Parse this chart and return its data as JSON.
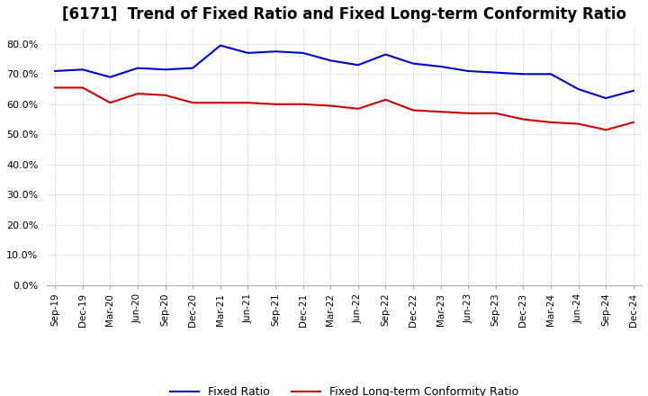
{
  "title": "[6171]  Trend of Fixed Ratio and Fixed Long-term Conformity Ratio",
  "x_labels": [
    "Sep-19",
    "Dec-19",
    "Mar-20",
    "Jun-20",
    "Sep-20",
    "Dec-20",
    "Mar-21",
    "Jun-21",
    "Sep-21",
    "Dec-21",
    "Mar-22",
    "Jun-22",
    "Sep-22",
    "Dec-22",
    "Mar-23",
    "Jun-23",
    "Sep-23",
    "Dec-23",
    "Mar-24",
    "Jun-24",
    "Sep-24",
    "Dec-24"
  ],
  "fixed_ratio": [
    71.0,
    71.5,
    69.0,
    72.0,
    71.5,
    72.0,
    79.5,
    77.0,
    77.5,
    77.0,
    74.5,
    73.0,
    76.5,
    73.5,
    72.5,
    71.0,
    70.5,
    70.0,
    70.0,
    65.0,
    62.0,
    64.5
  ],
  "fixed_lt_ratio": [
    65.5,
    65.5,
    60.5,
    63.5,
    63.0,
    60.5,
    60.5,
    60.5,
    60.0,
    60.0,
    59.5,
    58.5,
    61.5,
    58.0,
    57.5,
    57.0,
    57.0,
    55.0,
    54.0,
    53.5,
    51.5,
    54.0
  ],
  "fixed_ratio_color": "#0000cc",
  "fixed_lt_ratio_color": "#cc0000",
  "ylim": [
    0,
    85
  ],
  "yticks": [
    0,
    10,
    20,
    30,
    40,
    50,
    60,
    70,
    80
  ],
  "title_fontsize": 12,
  "legend_fixed": "Fixed Ratio",
  "legend_fixed_lt": "Fixed Long-term Conformity Ratio",
  "background_color": "#ffffff",
  "grid_color": "#aaaaaa"
}
